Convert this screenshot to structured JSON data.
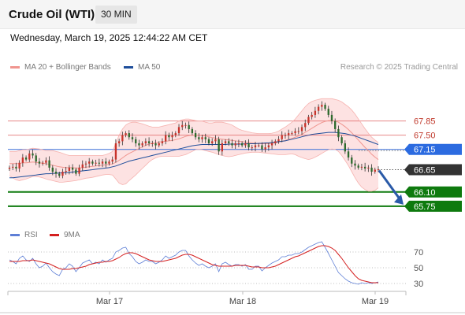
{
  "header": {
    "title": "Crude Oil (WTI)",
    "interval": "30 MIN",
    "timestamp": "Wednesday, March 19, 2025 12:44:22 AM CET"
  },
  "legend": {
    "main": [
      {
        "label": "MA 20 + Bollinger Bands",
        "color": "#f0958f"
      },
      {
        "label": "MA 50",
        "color": "#1f4e9b"
      }
    ],
    "indicator": [
      {
        "label": "RSI",
        "color": "#5e7fd6"
      },
      {
        "label": "9MA",
        "color": "#d42020"
      }
    ],
    "credit": "Research © 2025 Trading Central"
  },
  "chart_data": [
    {
      "type": "candlestick",
      "title": "Crude Oil (WTI)",
      "interval": "30 MIN",
      "x_tick_labels": [
        "Mar 17",
        "Mar 18",
        "Mar 19"
      ],
      "ylim": [
        65.3,
        68.6
      ],
      "levels": [
        {
          "label": "67.85",
          "value": 67.85,
          "kind": "resistance",
          "color": "#e06060"
        },
        {
          "label": "67.50",
          "value": 67.5,
          "kind": "resistance",
          "color": "#e06060"
        },
        {
          "label": "67.15",
          "value": 67.15,
          "kind": "pivot",
          "color": "#3a6fd8"
        },
        {
          "label": "66.65",
          "value": 66.65,
          "kind": "last",
          "color": "#333333"
        },
        {
          "label": "66.10",
          "value": 66.1,
          "kind": "support",
          "color": "#0e7a0e"
        },
        {
          "label": "65.75",
          "value": 65.75,
          "kind": "support",
          "color": "#0e7a0e"
        }
      ],
      "last_price": 66.65,
      "forecast_arrow": {
        "from": 66.63,
        "to": 65.75,
        "color": "#2a5aa8"
      },
      "close": [
        66.7,
        66.72,
        66.68,
        66.82,
        66.95,
        66.9,
        67.05,
        67.0,
        66.85,
        66.8,
        66.82,
        66.88,
        66.7,
        66.6,
        66.55,
        66.5,
        66.6,
        66.62,
        66.7,
        66.65,
        66.55,
        66.7,
        66.78,
        66.8,
        66.85,
        66.8,
        66.82,
        66.8,
        66.85,
        66.8,
        66.85,
        66.9,
        67.3,
        67.35,
        67.5,
        67.55,
        67.45,
        67.4,
        67.3,
        67.25,
        67.3,
        67.35,
        67.3,
        67.3,
        67.25,
        67.3,
        67.35,
        67.5,
        67.45,
        67.5,
        67.55,
        67.7,
        67.75,
        67.75,
        67.65,
        67.55,
        67.45,
        67.4,
        67.45,
        67.4,
        67.3,
        67.35,
        67.4,
        67.1,
        67.3,
        67.35,
        67.3,
        67.25,
        67.3,
        67.3,
        67.25,
        67.3,
        67.2,
        67.2,
        67.25,
        67.25,
        67.15,
        67.2,
        67.25,
        67.3,
        67.35,
        67.4,
        67.5,
        67.5,
        67.55,
        67.55,
        67.6,
        67.6,
        67.7,
        67.8,
        67.95,
        68.0,
        68.1,
        68.2,
        68.25,
        68.15,
        68.0,
        67.85,
        67.65,
        67.45,
        67.3,
        67.1,
        66.95,
        66.8,
        66.75,
        66.7,
        66.72,
        66.68,
        66.7,
        66.6,
        66.65,
        66.66
      ],
      "ma20": [
        66.8,
        66.8,
        66.8,
        66.8,
        66.82,
        66.82,
        66.83,
        66.84,
        66.83,
        66.82,
        66.81,
        66.8,
        66.78,
        66.76,
        66.74,
        66.72,
        66.71,
        66.7,
        66.7,
        66.7,
        66.69,
        66.69,
        66.7,
        66.71,
        66.72,
        66.73,
        66.74,
        66.75,
        66.76,
        66.77,
        66.78,
        66.79,
        66.83,
        66.88,
        66.94,
        67.0,
        67.05,
        67.09,
        67.13,
        67.17,
        67.21,
        67.25,
        67.28,
        67.3,
        67.31,
        67.33,
        67.34,
        67.35,
        67.36,
        67.37,
        67.39,
        67.41,
        67.44,
        67.47,
        67.49,
        67.5,
        67.5,
        67.5,
        67.49,
        67.48,
        67.46,
        67.44,
        67.43,
        67.41,
        67.4,
        67.39,
        67.38,
        67.37,
        67.36,
        67.35,
        67.34,
        67.33,
        67.32,
        67.31,
        67.3,
        67.29,
        67.29,
        67.29,
        67.29,
        67.3,
        67.31,
        67.33,
        67.35,
        67.37,
        67.4,
        67.42,
        67.45,
        67.48,
        67.52,
        67.57,
        67.62,
        67.67,
        67.72,
        67.77,
        67.81,
        67.84,
        67.86,
        67.86,
        67.85,
        67.82,
        67.77,
        67.71,
        67.64,
        67.56,
        67.47,
        67.38,
        67.29,
        67.2,
        67.12,
        67.03,
        66.96,
        66.9
      ],
      "bb_upper": [
        67.1,
        67.1,
        67.1,
        67.12,
        67.14,
        67.14,
        67.16,
        67.18,
        67.17,
        67.16,
        67.14,
        67.12,
        67.12,
        67.12,
        67.1,
        67.08,
        67.05,
        67.02,
        67.0,
        67.0,
        67.0,
        67.0,
        67.0,
        67.0,
        67.0,
        67.0,
        67.0,
        67.0,
        67.0,
        67.02,
        67.05,
        67.1,
        67.3,
        67.5,
        67.65,
        67.75,
        67.8,
        67.82,
        67.82,
        67.8,
        67.78,
        67.75,
        67.72,
        67.7,
        67.7,
        67.7,
        67.72,
        67.74,
        67.76,
        67.78,
        67.8,
        67.85,
        67.88,
        67.9,
        67.9,
        67.88,
        67.86,
        67.85,
        67.85,
        67.82,
        67.8,
        67.8,
        67.82,
        67.82,
        67.82,
        67.8,
        67.78,
        67.75,
        67.7,
        67.65,
        67.62,
        67.6,
        67.58,
        67.56,
        67.55,
        67.54,
        67.54,
        67.54,
        67.54,
        67.55,
        67.57,
        67.6,
        67.65,
        67.7,
        67.76,
        67.82,
        67.9,
        68.0,
        68.1,
        68.2,
        68.28,
        68.33,
        68.36,
        68.38,
        68.4,
        68.4,
        68.4,
        68.4,
        68.38,
        68.36,
        68.32,
        68.26,
        68.2,
        68.12,
        68.02,
        67.9,
        67.78,
        67.66,
        67.55,
        67.45,
        67.38,
        67.32
      ],
      "bb_lower": [
        66.5,
        66.45,
        66.4,
        66.38,
        66.4,
        66.42,
        66.45,
        66.48,
        66.48,
        66.47,
        66.45,
        66.42,
        66.4,
        66.38,
        66.36,
        66.34,
        66.34,
        66.35,
        66.36,
        66.37,
        66.38,
        66.4,
        66.42,
        66.44,
        66.45,
        66.46,
        66.48,
        66.5,
        66.52,
        66.53,
        66.53,
        66.52,
        66.42,
        66.32,
        66.28,
        66.3,
        66.38,
        66.45,
        66.52,
        66.6,
        66.68,
        66.76,
        66.84,
        66.9,
        66.94,
        66.97,
        66.98,
        66.98,
        66.98,
        66.98,
        66.98,
        66.98,
        67.0,
        67.02,
        67.06,
        67.1,
        67.14,
        67.15,
        67.14,
        67.12,
        67.1,
        67.08,
        67.05,
        67.02,
        67.0,
        66.98,
        66.97,
        66.98,
        67.0,
        67.02,
        67.04,
        67.06,
        67.07,
        67.08,
        67.08,
        67.08,
        67.07,
        67.06,
        67.05,
        67.04,
        67.03,
        67.02,
        67.02,
        67.02,
        67.03,
        67.04,
        67.02,
        66.98,
        66.95,
        66.92,
        66.9,
        66.92,
        66.96,
        67.0,
        67.05,
        67.1,
        67.14,
        67.16,
        67.15,
        67.1,
        67.0,
        66.88,
        66.75,
        66.6,
        66.45,
        66.32,
        66.22,
        66.16,
        66.12,
        66.12,
        66.14,
        66.2
      ],
      "ma50": [
        66.45,
        66.45,
        66.46,
        66.47,
        66.48,
        66.49,
        66.5,
        66.51,
        66.52,
        66.53,
        66.54,
        66.55,
        66.55,
        66.56,
        66.56,
        66.57,
        66.57,
        66.58,
        66.58,
        66.59,
        66.6,
        66.61,
        66.62,
        66.63,
        66.64,
        66.65,
        66.66,
        66.67,
        66.68,
        66.69,
        66.7,
        66.72,
        66.74,
        66.77,
        66.8,
        66.83,
        66.86,
        66.88,
        66.9,
        66.92,
        66.94,
        66.96,
        66.98,
        67.0,
        67.02,
        67.04,
        67.06,
        67.08,
        67.1,
        67.12,
        67.14,
        67.16,
        67.18,
        67.2,
        67.22,
        67.24,
        67.25,
        67.26,
        67.27,
        67.27,
        67.27,
        67.27,
        67.27,
        67.27,
        67.27,
        67.27,
        67.28,
        67.28,
        67.28,
        67.28,
        67.28,
        67.29,
        67.29,
        67.29,
        67.29,
        67.3,
        67.3,
        67.31,
        67.31,
        67.32,
        67.33,
        67.34,
        67.35,
        67.36,
        67.38,
        67.4,
        67.42,
        67.44,
        67.46,
        67.48,
        67.5,
        67.52,
        67.53,
        67.54,
        67.55,
        67.56,
        67.57,
        67.57,
        67.57,
        67.56,
        67.55,
        67.54,
        67.52,
        67.5,
        67.48,
        67.45,
        67.42,
        67.39,
        67.36,
        67.33,
        67.3,
        67.27
      ]
    },
    {
      "type": "line",
      "title": "RSI",
      "ylim": [
        20,
        85
      ],
      "y_ticks": [
        70,
        50,
        30
      ],
      "x_tick_labels": [
        "Mar 17",
        "Mar 18",
        "Mar 19"
      ],
      "series": [
        {
          "name": "RSI",
          "color": "#5e7fd6",
          "values": [
            60,
            58,
            55,
            62,
            65,
            60,
            58,
            62,
            55,
            50,
            52,
            56,
            50,
            45,
            42,
            40,
            48,
            50,
            55,
            52,
            45,
            50,
            56,
            58,
            60,
            55,
            57,
            55,
            60,
            57,
            60,
            62,
            70,
            72,
            75,
            76,
            68,
            64,
            58,
            55,
            57,
            60,
            58,
            58,
            55,
            57,
            60,
            65,
            62,
            64,
            66,
            70,
            72,
            72,
            65,
            60,
            56,
            53,
            55,
            52,
            50,
            52,
            55,
            45,
            55,
            57,
            54,
            52,
            54,
            54,
            52,
            54,
            48,
            48,
            52,
            52,
            46,
            50,
            53,
            56,
            58,
            60,
            64,
            64,
            66,
            66,
            68,
            68,
            70,
            73,
            76,
            78,
            80,
            82,
            83,
            76,
            68,
            60,
            52,
            44,
            40,
            36,
            33,
            31,
            30,
            29,
            31,
            30,
            31,
            30,
            31,
            32
          ]
        },
        {
          "name": "9MA",
          "color": "#d42020",
          "values": [
            58,
            58,
            58,
            58,
            59,
            59,
            59,
            60,
            59,
            58,
            57,
            56,
            55,
            53,
            51,
            49,
            48,
            48,
            48,
            49,
            49,
            50,
            51,
            52,
            54,
            55,
            56,
            57,
            57,
            58,
            58,
            59,
            61,
            63,
            66,
            68,
            69,
            69,
            68,
            66,
            64,
            62,
            60,
            59,
            58,
            58,
            58,
            59,
            60,
            61,
            62,
            64,
            66,
            67,
            67,
            66,
            64,
            62,
            60,
            58,
            56,
            54,
            53,
            52,
            52,
            52,
            52,
            52,
            53,
            53,
            53,
            53,
            52,
            51,
            51,
            51,
            50,
            50,
            50,
            51,
            52,
            54,
            56,
            58,
            60,
            62,
            64,
            65,
            67,
            69,
            71,
            73,
            75,
            77,
            78,
            78,
            77,
            75,
            72,
            67,
            62,
            56,
            50,
            45,
            40,
            36,
            34,
            33,
            32,
            31,
            31,
            31
          ]
        }
      ]
    }
  ]
}
